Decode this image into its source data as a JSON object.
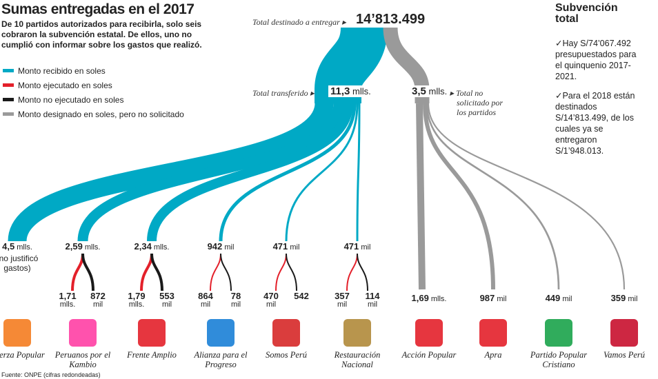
{
  "header": {
    "title": "Sumas entregadas en el 2017",
    "subtitle": "De 10 partidos autorizados para recibirla, solo seis cobraron la subvención estatal. De ellos, uno no cumplió con informar sobre los gastos que realizó."
  },
  "legend": [
    {
      "label": "Monto recibido en soles",
      "color": "#00a9c5"
    },
    {
      "label": "Monto ejecutado en soles",
      "color": "#e3202a"
    },
    {
      "label": "Monto no ejecutado en soles",
      "color": "#1a1a1a"
    },
    {
      "label": "Monto designado en soles, pero no solicitado",
      "color": "#9a9a9a"
    }
  ],
  "total": {
    "label": "Total destinado a entregar",
    "value": "14’813.499"
  },
  "transferred": {
    "label": "Total transferido",
    "value": "11,3",
    "unit": "mlls."
  },
  "not_requested": {
    "label": "Total no solicitado por los partidos",
    "value": "3,5",
    "unit": "mlls."
  },
  "parties": [
    {
      "name": "Fuerza Popular",
      "amount": "4,5",
      "unit": "mlls.",
      "note": "(no justificó gastos)"
    },
    {
      "name": "Peruanos por el Kambio",
      "amount": "2,59",
      "unit": "mlls.",
      "executed": "1,71",
      "executed_unit": "mlls.",
      "unexecuted": "872",
      "unexecuted_unit": "mil"
    },
    {
      "name": "Frente Amplio",
      "amount": "2,34",
      "unit": "mlls.",
      "executed": "1,79",
      "executed_unit": "mlls.",
      "unexecuted": "553",
      "unexecuted_unit": "mil"
    },
    {
      "name": "Alianza para el Progreso",
      "amount": "942",
      "unit": "mil",
      "executed": "864",
      "executed_unit": "mil",
      "unexecuted": "78",
      "unexecuted_unit": "mil"
    },
    {
      "name": "Somos Perú",
      "amount": "471",
      "unit": "mil",
      "executed": "470",
      "executed_unit": "mil",
      "unexecuted": "542"
    },
    {
      "name": "Restauración Nacional",
      "amount": "471",
      "unit": "mil",
      "executed": "357",
      "executed_unit": "mil",
      "unexecuted": "114",
      "unexecuted_unit": "mil"
    },
    {
      "name": "Acción Popular",
      "amount": "1,69",
      "unit": "mlls."
    },
    {
      "name": "Apra",
      "amount": "987",
      "unit": "mil"
    },
    {
      "name": "Partido Popular Cristiano",
      "amount": "449",
      "unit": "mil"
    },
    {
      "name": "Vamos Perú",
      "amount": "359",
      "unit": "mil"
    }
  ],
  "sidebar": {
    "title": "Subvención total",
    "items": [
      "✓Hay S/74’067.492 presupuestados para el quinquenio 2017-2021.",
      "✓Para el 2018 están destinados S/14’813.499, de los cuales ya se entregaron S/1’948.013."
    ]
  },
  "source": {
    "text": "Fuente: ONPE",
    "note": "(cifras redondeadas)"
  }
}
